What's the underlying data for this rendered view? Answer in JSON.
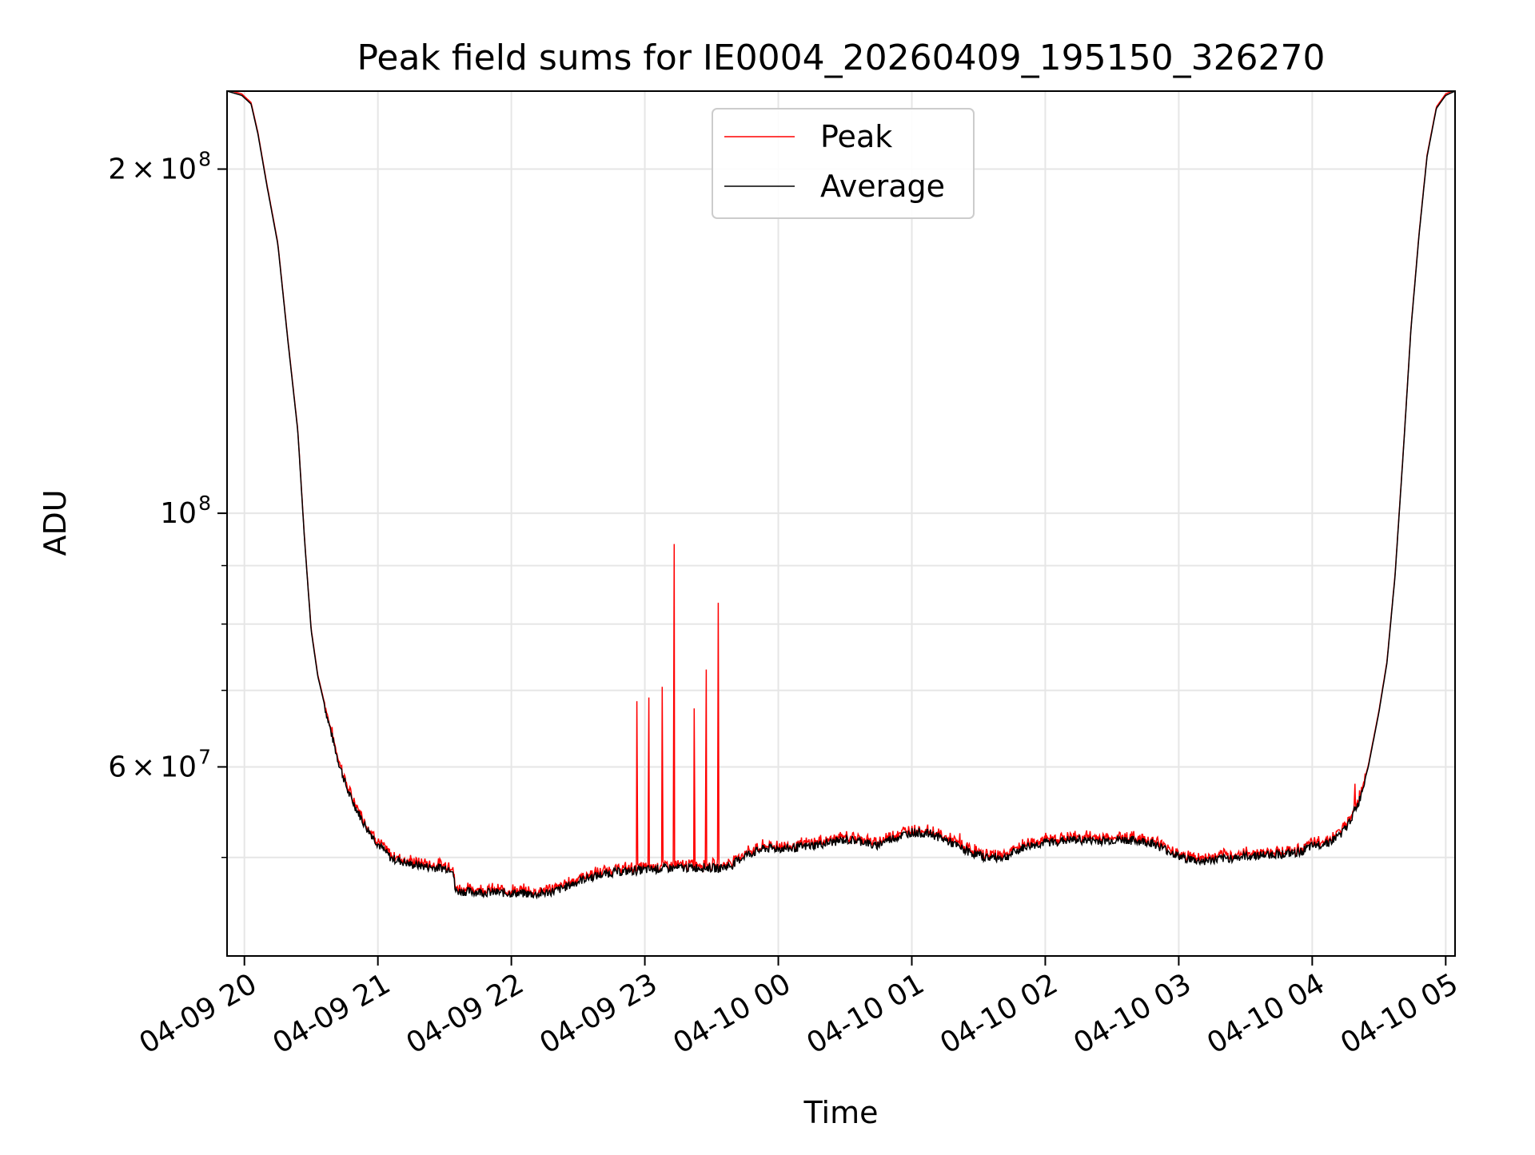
{
  "chart_data": {
    "type": "line",
    "title": "Peak field sums for IE0004_20260409_195150_326270",
    "xlabel": "Time",
    "ylabel": "ADU",
    "yscale": "log",
    "xlim_hours": [
      19.87,
      29.07
    ],
    "ylim": [
      41000000,
      234000000
    ],
    "grid": true,
    "legend_position": "upper center",
    "x_ticks": [
      {
        "hour": 20,
        "label": "04-09 20"
      },
      {
        "hour": 21,
        "label": "04-09 21"
      },
      {
        "hour": 22,
        "label": "04-09 22"
      },
      {
        "hour": 23,
        "label": "04-09 23"
      },
      {
        "hour": 24,
        "label": "04-10 00"
      },
      {
        "hour": 25,
        "label": "04-10 01"
      },
      {
        "hour": 26,
        "label": "04-10 02"
      },
      {
        "hour": 27,
        "label": "04-10 03"
      },
      {
        "hour": 28,
        "label": "04-10 04"
      },
      {
        "hour": 29,
        "label": "04-10 05"
      }
    ],
    "y_major_ticks": [
      {
        "value": 60000000,
        "mantissa": "6",
        "times": "×",
        "base": "10",
        "exp": "7"
      },
      {
        "value": 100000000,
        "mantissa": "",
        "times": "",
        "base": "10",
        "exp": "8"
      },
      {
        "value": 200000000,
        "mantissa": "2",
        "times": "×",
        "base": "10",
        "exp": "8"
      }
    ],
    "y_minor_ticks": [
      50000000,
      70000000,
      80000000,
      90000000,
      300000000
    ],
    "series": [
      {
        "name": "Peak",
        "color": "#ff0000",
        "spikes": [
          {
            "hour": 22.05,
            "value": 46500000
          },
          {
            "hour": 22.94,
            "value": 68500000
          },
          {
            "hour": 23.03,
            "value": 69000000
          },
          {
            "hour": 23.13,
            "value": 70500000
          },
          {
            "hour": 23.22,
            "value": 94000000
          },
          {
            "hour": 23.37,
            "value": 67500000
          },
          {
            "hour": 23.46,
            "value": 73000000
          },
          {
            "hour": 23.55,
            "value": 83500000
          },
          {
            "hour": 25.36,
            "value": 52500000
          },
          {
            "hour": 26.31,
            "value": 52800000
          },
          {
            "hour": 28.32,
            "value": 58000000
          }
        ]
      },
      {
        "name": "Average",
        "color": "#000000",
        "points": [
          [
            19.87,
            234000000
          ],
          [
            19.98,
            232000000
          ],
          [
            20.05,
            228000000
          ],
          [
            20.1,
            215000000
          ],
          [
            20.17,
            193000000
          ],
          [
            20.25,
            172000000
          ],
          [
            20.33,
            140000000
          ],
          [
            20.4,
            118000000
          ],
          [
            20.45,
            95000000
          ],
          [
            20.5,
            79000000
          ],
          [
            20.55,
            72000000
          ],
          [
            20.62,
            66500000
          ],
          [
            20.7,
            61000000
          ],
          [
            20.78,
            57000000
          ],
          [
            20.9,
            53500000
          ],
          [
            21.0,
            51500000
          ],
          [
            21.1,
            50000000
          ],
          [
            21.25,
            49400000
          ],
          [
            21.4,
            49100000
          ],
          [
            21.56,
            49000000
          ],
          [
            21.58,
            46800000
          ],
          [
            21.8,
            46700000
          ],
          [
            22.05,
            46600000
          ],
          [
            22.2,
            46500000
          ],
          [
            22.35,
            46900000
          ],
          [
            22.55,
            48000000
          ],
          [
            22.75,
            48600000
          ],
          [
            22.95,
            48800000
          ],
          [
            23.15,
            49000000
          ],
          [
            23.45,
            49100000
          ],
          [
            23.55,
            49000000
          ],
          [
            23.65,
            49300000
          ],
          [
            23.75,
            50300000
          ],
          [
            23.9,
            51000000
          ],
          [
            24.1,
            51000000
          ],
          [
            24.3,
            51400000
          ],
          [
            24.5,
            51900000
          ],
          [
            24.65,
            51700000
          ],
          [
            24.72,
            51200000
          ],
          [
            24.8,
            51800000
          ],
          [
            25.0,
            52700000
          ],
          [
            25.15,
            52500000
          ],
          [
            25.28,
            51700000
          ],
          [
            25.4,
            50800000
          ],
          [
            25.55,
            50100000
          ],
          [
            25.7,
            50100000
          ],
          [
            25.85,
            51200000
          ],
          [
            26.0,
            51600000
          ],
          [
            26.2,
            51900000
          ],
          [
            26.4,
            51800000
          ],
          [
            26.6,
            51900000
          ],
          [
            26.8,
            51600000
          ],
          [
            27.0,
            50200000
          ],
          [
            27.15,
            49700000
          ],
          [
            27.3,
            49900000
          ],
          [
            27.5,
            50200000
          ],
          [
            27.7,
            50400000
          ],
          [
            27.88,
            50500000
          ],
          [
            28.0,
            51200000
          ],
          [
            28.15,
            51800000
          ],
          [
            28.25,
            53000000
          ],
          [
            28.35,
            56000000
          ],
          [
            28.42,
            60000000
          ],
          [
            28.5,
            67000000
          ],
          [
            28.56,
            74000000
          ],
          [
            28.62,
            88000000
          ],
          [
            28.68,
            112000000
          ],
          [
            28.74,
            145000000
          ],
          [
            28.8,
            175000000
          ],
          [
            28.86,
            205000000
          ],
          [
            28.93,
            226000000
          ],
          [
            29.0,
            232000000
          ],
          [
            29.07,
            234000000
          ]
        ]
      }
    ]
  }
}
